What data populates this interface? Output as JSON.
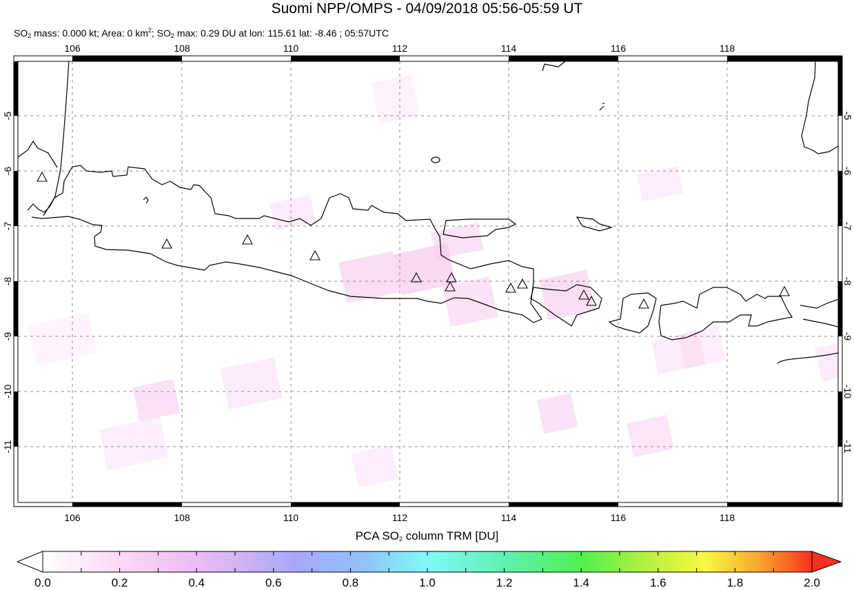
{
  "header": {
    "title": "Suomi NPP/OMPS - 04/09/2018 05:56-05:59 UT",
    "subtitle_parts": {
      "so2_a": "SO",
      "sub_a": "2",
      "mass": " mass: 0.000 kt; Area: 0 km",
      "sup": "2",
      "sep": "; SO",
      "sub_b": "2",
      "max": " max: 0.29 DU at lon: 115.61 lat: -8.46 ; 05:57UTC"
    }
  },
  "map": {
    "lon_labels": [
      "106",
      "108",
      "110",
      "112",
      "114",
      "116",
      "118"
    ],
    "lat_labels": [
      "-5",
      "-6",
      "-7",
      "-8",
      "-9",
      "-10",
      "-11"
    ],
    "lon_range": [
      105,
      120
    ],
    "lat_range": [
      -12.1,
      -4
    ],
    "grid": true,
    "marker_symbol": "volcano-triangle-icon"
  },
  "colorbar": {
    "title_a": "PCA SO",
    "title_sub": "2",
    "title_b": " column TRM [DU]",
    "tick_labels": [
      "0.0",
      "0.2",
      "0.4",
      "0.6",
      "0.8",
      "1.0",
      "1.2",
      "1.4",
      "1.6",
      "1.8",
      "2.0"
    ],
    "range": [
      0,
      2
    ],
    "colors": [
      "#ffffff",
      "#fbd8f4",
      "#ecbcf4",
      "#a8a8f8",
      "#90c4f8",
      "#80f8f8",
      "#60f0b0",
      "#50f050",
      "#b0f040",
      "#f8f840",
      "#f8a830",
      "#f83020"
    ]
  }
}
